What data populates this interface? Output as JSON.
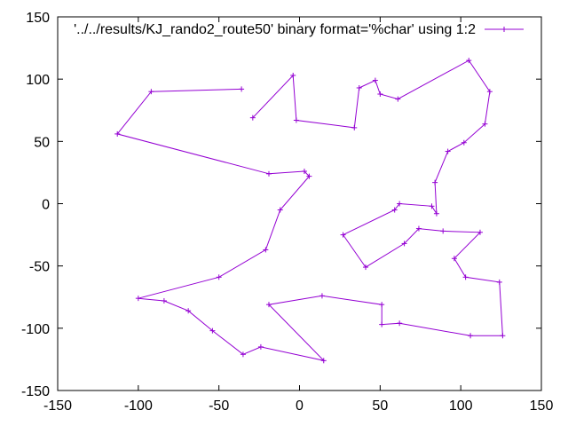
{
  "chart_data": {
    "type": "line",
    "legend": {
      "label": "'../../results/KJ_rando2_route50' binary format='%char' using 1:2",
      "placement": "top-right"
    },
    "xlim": [
      -150,
      150
    ],
    "ylim": [
      -150,
      150
    ],
    "x_ticks": [
      -150,
      -100,
      -50,
      0,
      50,
      100,
      150
    ],
    "y_ticks": [
      -150,
      -100,
      -50,
      0,
      50,
      100,
      150
    ],
    "grid": false,
    "series_color": "#9400d3",
    "series": [
      {
        "name": "'../../results/KJ_rando2_route50' binary format='%char' using 1:2",
        "points": [
          [
            -36,
            92
          ],
          [
            -92,
            90
          ],
          [
            -113,
            56
          ],
          [
            -19,
            24
          ],
          [
            3,
            26
          ],
          [
            6,
            22
          ],
          [
            -12,
            -5
          ],
          [
            -21,
            -37
          ],
          [
            -50,
            -59
          ],
          [
            -100,
            -76
          ],
          [
            -84,
            -78
          ],
          [
            -69,
            -86
          ],
          [
            -54,
            -102
          ],
          [
            -35,
            -121
          ],
          [
            -24,
            -115
          ],
          [
            15,
            -126
          ],
          [
            -19,
            -81
          ],
          [
            14,
            -74
          ],
          [
            51,
            -81
          ],
          [
            51,
            -97
          ],
          [
            62,
            -96
          ],
          [
            106,
            -106
          ],
          [
            126,
            -106
          ],
          [
            124,
            -63
          ],
          [
            103,
            -59
          ],
          [
            96,
            -44
          ],
          [
            112,
            -23
          ],
          [
            89,
            -22
          ],
          [
            74,
            -20
          ],
          [
            65,
            -32
          ],
          [
            41,
            -51
          ],
          [
            27,
            -25
          ],
          [
            59,
            -5
          ],
          [
            62,
            0
          ],
          [
            82,
            -2
          ],
          [
            85,
            -8
          ],
          [
            84,
            17
          ],
          [
            92,
            42
          ],
          [
            102,
            49
          ],
          [
            115,
            64
          ],
          [
            118,
            90
          ],
          [
            105,
            115
          ],
          [
            61,
            84
          ],
          [
            50,
            88
          ],
          [
            47,
            99
          ],
          [
            37,
            93
          ],
          [
            34,
            61
          ],
          [
            -2,
            67
          ],
          [
            -4,
            103
          ],
          [
            -29,
            69
          ]
        ]
      }
    ]
  }
}
